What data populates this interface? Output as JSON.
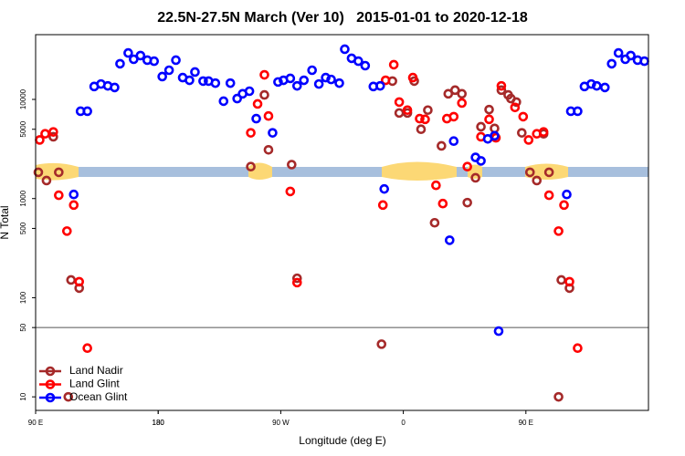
{
  "chart_data": {
    "type": "scatter",
    "title": "22.5N-27.5N March (Ver 10)   2015-01-01 to 2020-12-18",
    "x_label": "Longitude (deg E)",
    "y_label": "N Total",
    "log_y": true,
    "legend": "lower left",
    "xlim": [
      90,
      540
    ],
    "xticks": [
      {
        "value": 90,
        "label": "90 E"
      },
      180,
      {
        "value": 270,
        "label": "90 W"
      },
      {
        "value": 360,
        "label": "0"
      },
      {
        "value": 450,
        "label": "90 E"
      },
      180
    ],
    "ylim": [
      7.3,
      45000
    ],
    "yticks": [
      10,
      50,
      100,
      500,
      1000,
      5000,
      10000
    ],
    "reference_line": 50,
    "series": [
      {
        "name": "Land Nadir",
        "color": "#a52a2a",
        "x": [
          92,
          98,
          103,
          107,
          114,
          116,
          122,
          248,
          258,
          261,
          278,
          282,
          344,
          352,
          357,
          363,
          368,
          373,
          378,
          383,
          388,
          393,
          398,
          403,
          407,
          413,
          417,
          423,
          427,
          432,
          437,
          439,
          443,
          447,
          453,
          458,
          463,
          467,
          474,
          476,
          482
        ],
        "values": [
          1840,
          1520,
          4200,
          1840,
          10,
          151,
          125,
          2100,
          11100,
          3100,
          2200,
          157,
          34,
          15300,
          7300,
          7300,
          15300,
          5000,
          7800,
          570,
          3400,
          11400,
          12400,
          11400,
          910,
          1620,
          5300,
          7900,
          5100,
          12400,
          11100,
          10200,
          9400,
          4600,
          1840,
          1520,
          4500,
          1840,
          10,
          151,
          125
        ]
      },
      {
        "name": "Land Glint",
        "color": "#ff0000",
        "x": [
          93,
          97,
          103,
          107,
          113,
          118,
          122,
          128,
          248,
          253,
          258,
          261,
          277,
          282,
          345,
          347,
          353,
          357,
          363,
          367,
          372,
          376,
          384,
          389,
          392,
          397,
          403,
          407,
          417,
          423,
          428,
          432,
          442,
          448,
          452,
          458,
          463,
          467,
          474,
          478,
          482,
          488
        ],
        "values": [
          3900,
          4500,
          4700,
          1080,
          470,
          860,
          145,
          31,
          4600,
          9000,
          17700,
          6800,
          1180,
          142,
          860,
          15600,
          22400,
          9400,
          7800,
          16600,
          6400,
          6300,
          1360,
          890,
          6400,
          6700,
          9200,
          2100,
          4200,
          6300,
          4100,
          13700,
          8300,
          6700,
          3900,
          4500,
          4700,
          1080,
          470,
          860,
          145,
          31
        ]
      },
      {
        "name": "Ocean Glint",
        "color": "#0000ff",
        "x": [
          118,
          123,
          128,
          133,
          138,
          143,
          148,
          152,
          158,
          162,
          167,
          172,
          177,
          183,
          188,
          193,
          198,
          203,
          207,
          213,
          217,
          222,
          228,
          233,
          238,
          242,
          247,
          252,
          264,
          268,
          272,
          277,
          282,
          287,
          293,
          298,
          303,
          307,
          313,
          317,
          322,
          327,
          332,
          338,
          343,
          346,
          394,
          397,
          413,
          417,
          422,
          427,
          430,
          480,
          483,
          488,
          493,
          498,
          502,
          508,
          513,
          518,
          523,
          527,
          532,
          537
        ],
        "values": [
          1100,
          7600,
          7600,
          13500,
          14300,
          13700,
          13200,
          22900,
          29400,
          25400,
          27700,
          24900,
          24300,
          17000,
          19700,
          24900,
          16600,
          15600,
          18900,
          15300,
          15300,
          14600,
          9600,
          14600,
          10200,
          11400,
          12100,
          6400,
          4600,
          15000,
          15600,
          16300,
          13700,
          15600,
          19700,
          14300,
          16600,
          15900,
          14600,
          32100,
          26000,
          24300,
          21900,
          13500,
          13700,
          1250,
          380,
          3800,
          2600,
          2400,
          4000,
          4300,
          46,
          1100,
          7600,
          7600,
          13500,
          14300,
          13700,
          13200,
          22900,
          29400,
          25400,
          27700,
          24900,
          24300
        ]
      }
    ]
  }
}
